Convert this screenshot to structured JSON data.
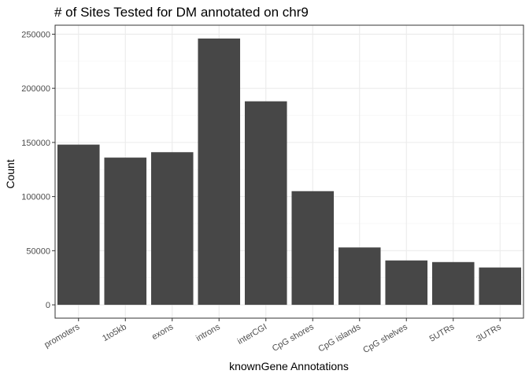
{
  "chart_data": {
    "type": "bar",
    "title": "# of Sites Tested for DM annotated on chr9",
    "xlabel": "knownGene Annotations",
    "ylabel": "Count",
    "categories": [
      "promoters",
      "1to5kb",
      "exons",
      "introns",
      "interCGI",
      "CpG shores",
      "CpG islands",
      "CpG shelves",
      "5UTRs",
      "3UTRs"
    ],
    "values": [
      148000,
      136000,
      141000,
      246000,
      188000,
      105000,
      53000,
      41000,
      39500,
      34500
    ],
    "yticks": [
      0,
      50000,
      100000,
      150000,
      200000,
      250000
    ],
    "ytick_labels": [
      "0",
      "50000",
      "100000",
      "150000",
      "200000",
      "250000"
    ],
    "ylim": [
      -12300,
      258300
    ],
    "bar_color": "#474747",
    "background": "#ffffff",
    "grid": true,
    "legend": "none"
  }
}
